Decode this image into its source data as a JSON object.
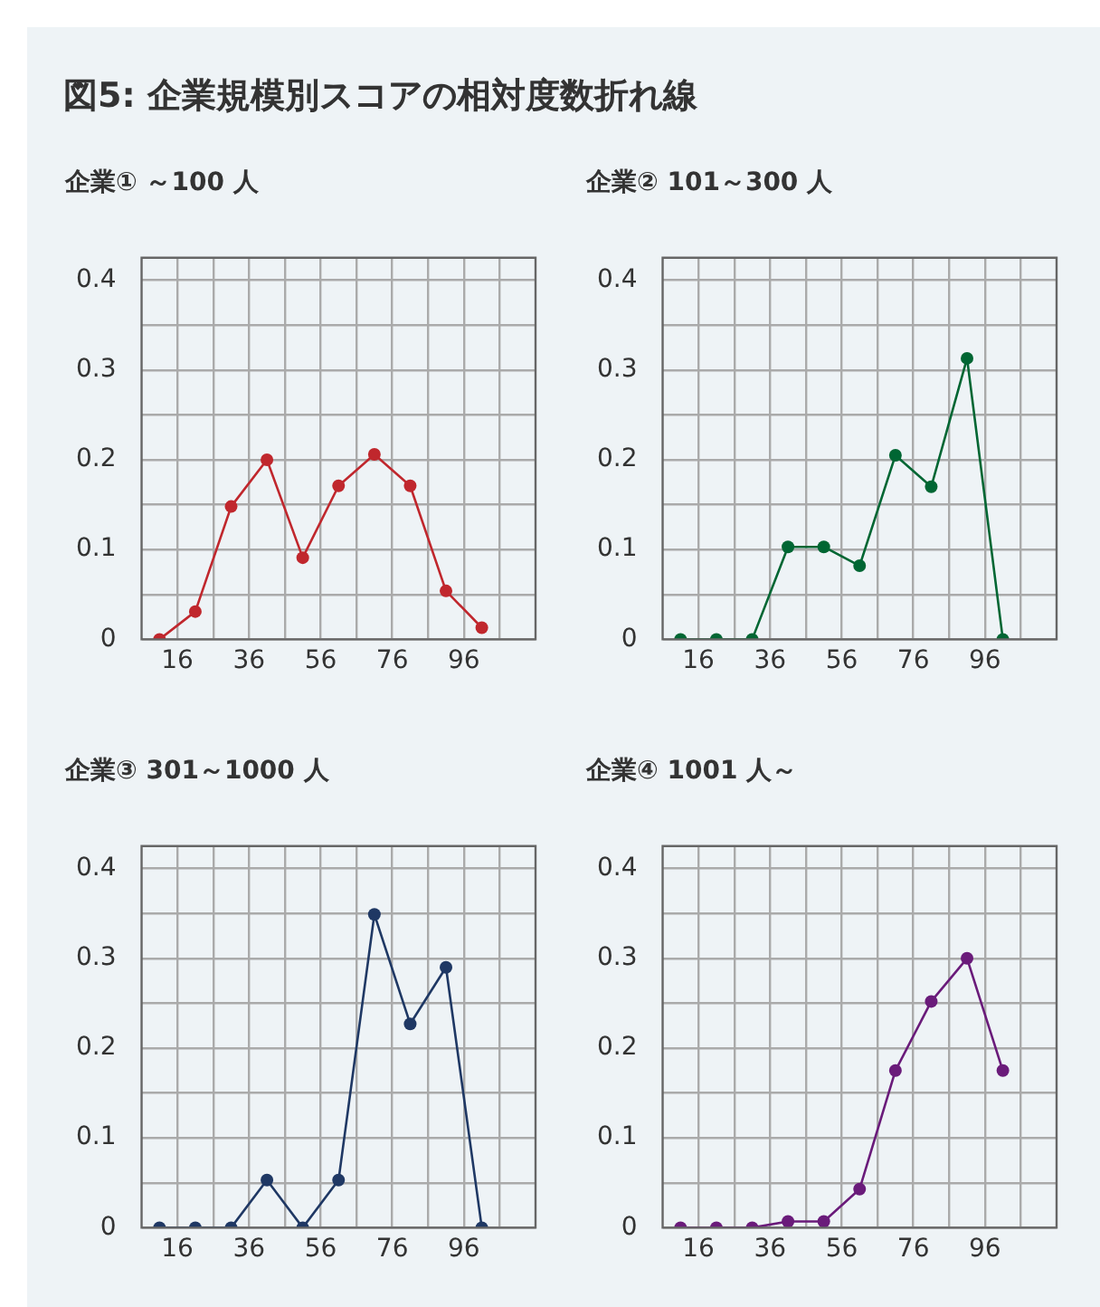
{
  "chart_data": [
    {
      "type": "line",
      "title": "企業① ～100 人",
      "annotations": [
        "図5: 企業規模別スコアの相対度数折れ線"
      ],
      "x": [
        11,
        21,
        31,
        41,
        51,
        61,
        71,
        81,
        91,
        101
      ],
      "xlim": [
        6,
        116
      ],
      "xticks": [
        16,
        {
          "value": 26,
          "label": null
        },
        36,
        {
          "value": 46,
          "label": null
        },
        56,
        {
          "value": 66,
          "label": null
        },
        76,
        {
          "value": 86,
          "label": null
        },
        96,
        {
          "value": 106,
          "label": null
        }
      ],
      "ylim": [
        0,
        0.425
      ],
      "yticks": [
        0,
        {
          "value": 0.05,
          "label": null
        },
        0.1,
        {
          "value": 0.15,
          "label": null
        },
        0.2,
        {
          "value": 0.25,
          "label": null
        },
        0.3,
        {
          "value": 0.35,
          "label": null
        },
        0.4
      ],
      "grid": true,
      "marker": "circle",
      "line_style": "solid",
      "series": [
        {
          "color": "#c0272d",
          "values": [
            0,
            0.031,
            0.148,
            0.2,
            0.091,
            0.171,
            0.206,
            0.171,
            0.054,
            0.013
          ]
        }
      ]
    },
    {
      "type": "line",
      "title": "企業② 101～300 人",
      "x": [
        11,
        21,
        31,
        41,
        51,
        61,
        71,
        81,
        91,
        101
      ],
      "xlim": [
        6,
        116
      ],
      "xticks": [
        16,
        {
          "value": 26,
          "label": null
        },
        36,
        {
          "value": 46,
          "label": null
        },
        56,
        {
          "value": 66,
          "label": null
        },
        76,
        {
          "value": 86,
          "label": null
        },
        96,
        {
          "value": 106,
          "label": null
        }
      ],
      "ylim": [
        0,
        0.425
      ],
      "yticks": [
        0,
        {
          "value": 0.05,
          "label": null
        },
        0.1,
        {
          "value": 0.15,
          "label": null
        },
        0.2,
        {
          "value": 0.25,
          "label": null
        },
        0.3,
        {
          "value": 0.35,
          "label": null
        },
        0.4
      ],
      "grid": true,
      "marker": "circle",
      "line_style": "solid",
      "series": [
        {
          "color": "#006633",
          "values": [
            0,
            0,
            0,
            0.103,
            0.103,
            0.082,
            0.205,
            0.17,
            0.313,
            0
          ]
        }
      ]
    },
    {
      "type": "line",
      "title": "企業③ 301～1000 人",
      "x": [
        11,
        21,
        31,
        41,
        51,
        61,
        71,
        81,
        91,
        101
      ],
      "xlim": [
        6,
        116
      ],
      "xticks": [
        16,
        {
          "value": 26,
          "label": null
        },
        36,
        {
          "value": 46,
          "label": null
        },
        56,
        {
          "value": 66,
          "label": null
        },
        76,
        {
          "value": 86,
          "label": null
        },
        96,
        {
          "value": 106,
          "label": null
        }
      ],
      "ylim": [
        0,
        0.425
      ],
      "yticks": [
        0,
        {
          "value": 0.05,
          "label": null
        },
        0.1,
        {
          "value": 0.15,
          "label": null
        },
        0.2,
        {
          "value": 0.25,
          "label": null
        },
        0.3,
        {
          "value": 0.35,
          "label": null
        },
        0.4
      ],
      "grid": true,
      "marker": "circle",
      "line_style": "solid",
      "series": [
        {
          "color": "#1f3864",
          "values": [
            0,
            0,
            0,
            0.053,
            0,
            0.053,
            0.349,
            0.227,
            0.29,
            0
          ]
        }
      ]
    },
    {
      "type": "line",
      "title": "企業④ 1001 人～",
      "x": [
        11,
        21,
        31,
        41,
        51,
        61,
        71,
        81,
        91,
        101
      ],
      "xlim": [
        6,
        116
      ],
      "xticks": [
        16,
        {
          "value": 26,
          "label": null
        },
        36,
        {
          "value": 46,
          "label": null
        },
        56,
        {
          "value": 66,
          "label": null
        },
        76,
        {
          "value": 86,
          "label": null
        },
        96,
        {
          "value": 106,
          "label": null
        }
      ],
      "ylim": [
        0,
        0.425
      ],
      "yticks": [
        0,
        {
          "value": 0.05,
          "label": null
        },
        0.1,
        {
          "value": 0.15,
          "label": null
        },
        0.2,
        {
          "value": 0.25,
          "label": null
        },
        0.3,
        {
          "value": 0.35,
          "label": null
        },
        0.4
      ],
      "grid": true,
      "marker": "circle",
      "line_style": "solid",
      "series": [
        {
          "color": "#6a1b7a",
          "values": [
            0,
            0,
            0,
            0.007,
            0.007,
            0.043,
            0.175,
            0.252,
            0.3,
            0.175
          ]
        }
      ]
    }
  ]
}
